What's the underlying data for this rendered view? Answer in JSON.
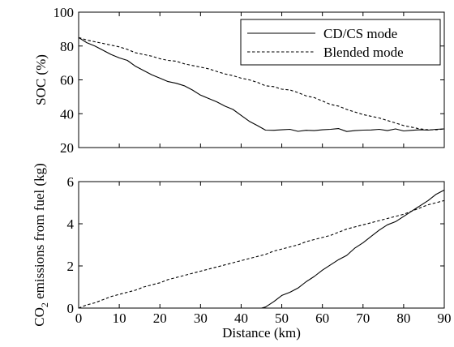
{
  "chart_data": [
    {
      "type": "line",
      "xlabel": "",
      "ylabel": "SOC (%)",
      "xlim": [
        0,
        90
      ],
      "ylim": [
        20,
        100
      ],
      "xticks": [
        0,
        10,
        20,
        30,
        40,
        50,
        60,
        70,
        80,
        90
      ],
      "yticks": [
        20,
        40,
        60,
        80,
        100
      ],
      "show_xtick_labels": false,
      "grid": false,
      "legend": "top-right",
      "series": [
        {
          "name": "CD/CS mode",
          "style": "solid",
          "x": [
            0,
            2,
            4,
            6,
            8,
            10,
            12,
            14,
            16,
            18,
            20,
            22,
            24,
            26,
            28,
            30,
            32,
            34,
            36,
            38,
            40,
            42,
            44,
            46,
            48,
            50,
            52,
            54,
            56,
            58,
            60,
            62,
            64,
            66,
            68,
            70,
            72,
            74,
            76,
            78,
            80,
            82,
            84,
            86,
            88,
            90
          ],
          "y": [
            85,
            82,
            80,
            77.5,
            75,
            73,
            71.5,
            68,
            65.5,
            63,
            61,
            59,
            58,
            56.5,
            54,
            51,
            49,
            47,
            44.5,
            42.5,
            39,
            35.5,
            33,
            30.3,
            30.2,
            30.5,
            30.8,
            29.6,
            30.2,
            30,
            30.5,
            30.8,
            31.2,
            29.5,
            30,
            30.3,
            30.4,
            30.8,
            30,
            31,
            29.8,
            30.2,
            30.5,
            30.3,
            30.8,
            31
          ]
        },
        {
          "name": "Blended mode",
          "style": "dashed",
          "x": [
            0,
            2,
            4,
            6,
            8,
            10,
            12,
            14,
            16,
            18,
            20,
            22,
            24,
            26,
            28,
            30,
            32,
            34,
            36,
            38,
            40,
            42,
            44,
            46,
            48,
            50,
            52,
            54,
            56,
            58,
            60,
            62,
            64,
            66,
            68,
            70,
            72,
            74,
            76,
            78,
            80,
            82,
            84,
            86,
            88,
            90
          ],
          "y": [
            85,
            83.5,
            82.5,
            81.5,
            80.5,
            79.5,
            78,
            76,
            75,
            74,
            72.5,
            71.5,
            71,
            69.5,
            68.5,
            67.5,
            66.5,
            65,
            63.5,
            62.5,
            61,
            60,
            58.5,
            56.5,
            56,
            54.5,
            54,
            52.5,
            50.5,
            49.5,
            47.5,
            45.5,
            44.5,
            42.5,
            41,
            39.5,
            38.5,
            37.5,
            36,
            34.5,
            33,
            32,
            31,
            30.5,
            30.5,
            31
          ]
        }
      ]
    },
    {
      "type": "line",
      "xlabel": "Distance (km)",
      "ylabel": "CO₂ emissions from fuel (kg)",
      "ylabel_parts": [
        "CO",
        "2",
        " emissions from fuel (kg)"
      ],
      "xlim": [
        0,
        90
      ],
      "ylim": [
        0,
        6
      ],
      "xticks": [
        0,
        10,
        20,
        30,
        40,
        50,
        60,
        70,
        80,
        90
      ],
      "yticks": [
        0,
        2,
        4,
        6
      ],
      "show_xtick_labels": true,
      "grid": false,
      "series": [
        {
          "name": "CD/CS mode",
          "style": "solid",
          "x": [
            0,
            45,
            46,
            48,
            50,
            52,
            54,
            56,
            58,
            60,
            62,
            64,
            66,
            68,
            70,
            72,
            74,
            76,
            78,
            80,
            82,
            84,
            86,
            88,
            90
          ],
          "y": [
            0,
            0,
            0.05,
            0.3,
            0.6,
            0.75,
            0.95,
            1.25,
            1.5,
            1.8,
            2.05,
            2.3,
            2.5,
            2.85,
            3.1,
            3.4,
            3.7,
            3.95,
            4.1,
            4.35,
            4.6,
            4.85,
            5.1,
            5.4,
            5.6
          ]
        },
        {
          "name": "Blended mode",
          "style": "dashed",
          "x": [
            0,
            2,
            4,
            6,
            8,
            10,
            12,
            14,
            16,
            18,
            20,
            22,
            24,
            26,
            28,
            30,
            32,
            34,
            36,
            38,
            40,
            42,
            44,
            46,
            48,
            50,
            52,
            54,
            56,
            58,
            60,
            62,
            64,
            66,
            68,
            70,
            72,
            74,
            76,
            78,
            80,
            82,
            84,
            86,
            88,
            90
          ],
          "y": [
            0,
            0.15,
            0.25,
            0.4,
            0.55,
            0.65,
            0.75,
            0.85,
            1.0,
            1.1,
            1.2,
            1.35,
            1.45,
            1.55,
            1.65,
            1.75,
            1.85,
            1.95,
            2.05,
            2.15,
            2.25,
            2.35,
            2.45,
            2.55,
            2.7,
            2.8,
            2.9,
            3.0,
            3.15,
            3.25,
            3.35,
            3.45,
            3.6,
            3.75,
            3.85,
            3.95,
            4.05,
            4.15,
            4.25,
            4.35,
            4.45,
            4.6,
            4.75,
            4.9,
            5.0,
            5.1
          ]
        }
      ]
    }
  ]
}
